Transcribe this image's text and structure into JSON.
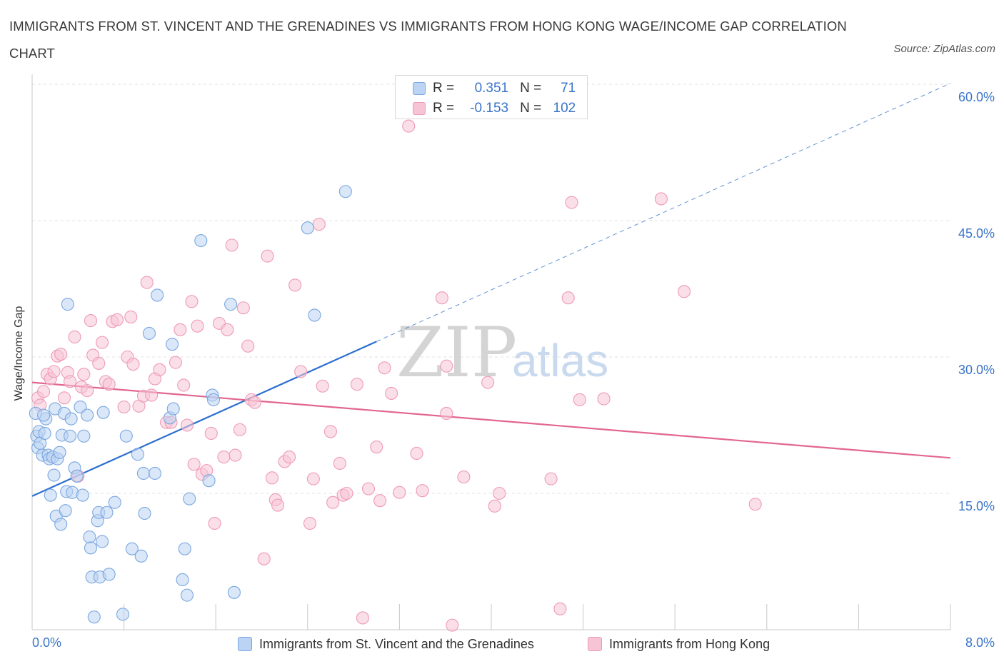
{
  "title": "IMMIGRANTS FROM ST. VINCENT AND THE GRENADINES VS IMMIGRANTS FROM HONG KONG WAGE/INCOME GAP CORRELATION CHART",
  "source": "Source: ZipAtlas.com",
  "watermark": {
    "zip": "ZIP",
    "atlas": "atlas"
  },
  "legend": {
    "r_label": "R =",
    "n_label": "N =",
    "rows": [
      {
        "r": "0.351",
        "n": "71"
      },
      {
        "r": "-0.153",
        "n": "102"
      }
    ]
  },
  "chart_data": {
    "type": "scatter",
    "xlabel": "",
    "ylabel": "Wage/Income Gap",
    "x_unit": "%",
    "xlim": [
      0,
      8
    ],
    "ylim": [
      0,
      60
    ],
    "x_tick_labels": [
      "0.0%",
      "8.0%"
    ],
    "y_ticks": [
      15,
      30,
      45,
      60
    ],
    "y_tick_labels": [
      "15.0%",
      "30.0%",
      "45.0%",
      "60.0%"
    ],
    "grid": true,
    "legend_position": "top-center",
    "series": [
      {
        "name": "Immigrants from St. Vincent and the Grenadines",
        "color": "#7aa7e0",
        "fill": "#bcd4f3",
        "r": 0.351,
        "n": 71,
        "trend": {
          "x": [
            0,
            3.0
          ],
          "y": [
            14.7,
            31.7
          ],
          "dashed_to": [
            8.0,
            60.1
          ]
        },
        "points": [
          [
            0.03,
            23.8
          ],
          [
            0.04,
            21.3
          ],
          [
            0.05,
            20.0
          ],
          [
            0.06,
            21.8
          ],
          [
            0.07,
            20.5
          ],
          [
            0.09,
            19.2
          ],
          [
            0.11,
            21.6
          ],
          [
            0.12,
            23.2
          ],
          [
            0.14,
            19.2
          ],
          [
            0.15,
            18.8
          ],
          [
            0.16,
            14.8
          ],
          [
            0.18,
            19.0
          ],
          [
            0.19,
            17.0
          ],
          [
            0.2,
            24.3
          ],
          [
            0.21,
            12.5
          ],
          [
            0.22,
            18.8
          ],
          [
            0.24,
            19.5
          ],
          [
            0.25,
            11.6
          ],
          [
            0.26,
            21.4
          ],
          [
            0.28,
            23.8
          ],
          [
            0.29,
            13.1
          ],
          [
            0.3,
            15.2
          ],
          [
            0.31,
            35.8
          ],
          [
            0.33,
            21.3
          ],
          [
            0.34,
            23.2
          ],
          [
            0.35,
            15.1
          ],
          [
            0.37,
            17.8
          ],
          [
            0.39,
            16.9
          ],
          [
            0.42,
            24.5
          ],
          [
            0.44,
            14.8
          ],
          [
            0.45,
            21.3
          ],
          [
            0.48,
            23.6
          ],
          [
            0.5,
            10.2
          ],
          [
            0.51,
            9.0
          ],
          [
            0.52,
            5.8
          ],
          [
            0.54,
            1.4
          ],
          [
            0.57,
            12.0
          ],
          [
            0.58,
            12.9
          ],
          [
            0.59,
            5.8
          ],
          [
            0.61,
            9.7
          ],
          [
            0.62,
            23.9
          ],
          [
            0.65,
            12.9
          ],
          [
            0.67,
            6.1
          ],
          [
            0.72,
            14.0
          ],
          [
            0.79,
            1.7
          ],
          [
            0.82,
            21.3
          ],
          [
            0.87,
            8.9
          ],
          [
            0.92,
            19.3
          ],
          [
            0.95,
            8.1
          ],
          [
            0.97,
            17.2
          ],
          [
            0.98,
            12.8
          ],
          [
            1.02,
            32.6
          ],
          [
            1.07,
            17.2
          ],
          [
            1.09,
            36.8
          ],
          [
            1.2,
            23.3
          ],
          [
            1.22,
            31.4
          ],
          [
            1.23,
            24.3
          ],
          [
            1.31,
            5.5
          ],
          [
            1.33,
            8.9
          ],
          [
            1.35,
            3.8
          ],
          [
            1.37,
            14.4
          ],
          [
            1.47,
            42.8
          ],
          [
            1.54,
            16.4
          ],
          [
            1.57,
            25.8
          ],
          [
            1.58,
            25.3
          ],
          [
            1.73,
            35.8
          ],
          [
            1.76,
            4.1
          ],
          [
            2.4,
            44.2
          ],
          [
            2.46,
            34.6
          ],
          [
            2.73,
            48.2
          ],
          [
            0.1,
            23.6
          ]
        ]
      },
      {
        "name": "Immigrants from Hong Kong",
        "color": "#ee9ab6",
        "fill": "#f7c4d5",
        "r": -0.153,
        "n": 102,
        "trend": {
          "x": [
            0,
            8.0
          ],
          "y": [
            27.2,
            18.9
          ]
        },
        "points": [
          [
            0.05,
            25.5
          ],
          [
            0.07,
            24.7
          ],
          [
            0.1,
            26.2
          ],
          [
            0.13,
            28.1
          ],
          [
            0.16,
            27.6
          ],
          [
            0.19,
            28.4
          ],
          [
            0.22,
            30.1
          ],
          [
            0.25,
            30.3
          ],
          [
            0.28,
            25.5
          ],
          [
            0.31,
            28.3
          ],
          [
            0.33,
            27.3
          ],
          [
            0.37,
            32.2
          ],
          [
            0.4,
            16.9
          ],
          [
            0.43,
            26.7
          ],
          [
            0.45,
            28.1
          ],
          [
            0.48,
            26.3
          ],
          [
            0.51,
            34.0
          ],
          [
            0.53,
            30.2
          ],
          [
            0.58,
            29.3
          ],
          [
            0.61,
            31.6
          ],
          [
            0.64,
            27.3
          ],
          [
            0.67,
            27.0
          ],
          [
            0.7,
            33.9
          ],
          [
            0.74,
            34.1
          ],
          [
            0.8,
            24.5
          ],
          [
            0.83,
            30.0
          ],
          [
            0.86,
            34.4
          ],
          [
            0.88,
            29.2
          ],
          [
            0.93,
            24.6
          ],
          [
            0.97,
            25.7
          ],
          [
            1.0,
            38.2
          ],
          [
            1.04,
            25.8
          ],
          [
            1.07,
            27.6
          ],
          [
            1.11,
            28.6
          ],
          [
            1.17,
            22.8
          ],
          [
            1.21,
            22.8
          ],
          [
            1.25,
            29.4
          ],
          [
            1.29,
            33.0
          ],
          [
            1.32,
            26.9
          ],
          [
            1.35,
            22.5
          ],
          [
            1.39,
            36.1
          ],
          [
            1.41,
            18.2
          ],
          [
            1.44,
            33.4
          ],
          [
            1.48,
            17.1
          ],
          [
            1.52,
            17.5
          ],
          [
            1.56,
            21.6
          ],
          [
            1.59,
            11.7
          ],
          [
            1.63,
            33.7
          ],
          [
            1.67,
            19.0
          ],
          [
            1.7,
            33.0
          ],
          [
            1.74,
            42.3
          ],
          [
            1.77,
            19.2
          ],
          [
            1.81,
            22.0
          ],
          [
            1.84,
            35.4
          ],
          [
            1.88,
            31.2
          ],
          [
            1.91,
            25.3
          ],
          [
            1.94,
            25.0
          ],
          [
            2.02,
            7.8
          ],
          [
            2.05,
            41.1
          ],
          [
            2.09,
            16.7
          ],
          [
            2.12,
            14.3
          ],
          [
            2.14,
            13.7
          ],
          [
            2.2,
            18.5
          ],
          [
            2.24,
            19.0
          ],
          [
            2.29,
            37.9
          ],
          [
            2.34,
            28.4
          ],
          [
            2.42,
            11.7
          ],
          [
            2.45,
            16.6
          ],
          [
            2.5,
            44.6
          ],
          [
            2.53,
            26.8
          ],
          [
            2.6,
            21.8
          ],
          [
            2.62,
            14.0
          ],
          [
            2.68,
            18.3
          ],
          [
            2.71,
            14.8
          ],
          [
            2.74,
            15.0
          ],
          [
            2.83,
            27.0
          ],
          [
            2.88,
            1.3
          ],
          [
            2.93,
            15.5
          ],
          [
            3.0,
            20.1
          ],
          [
            3.03,
            14.2
          ],
          [
            3.07,
            28.8
          ],
          [
            3.13,
            26.0
          ],
          [
            3.2,
            15.1
          ],
          [
            3.28,
            55.4
          ],
          [
            3.35,
            19.4
          ],
          [
            3.4,
            15.3
          ],
          [
            3.57,
            36.5
          ],
          [
            3.61,
            29.0
          ],
          [
            3.61,
            23.8
          ],
          [
            3.66,
            0.5
          ],
          [
            3.76,
            16.8
          ],
          [
            3.97,
            27.2
          ],
          [
            4.03,
            13.6
          ],
          [
            4.07,
            15.0
          ],
          [
            4.52,
            16.6
          ],
          [
            4.6,
            2.3
          ],
          [
            4.67,
            36.5
          ],
          [
            4.7,
            47.0
          ],
          [
            4.77,
            25.3
          ],
          [
            4.98,
            25.4
          ],
          [
            5.48,
            47.4
          ],
          [
            5.68,
            37.2
          ],
          [
            6.3,
            13.8
          ]
        ]
      }
    ]
  }
}
